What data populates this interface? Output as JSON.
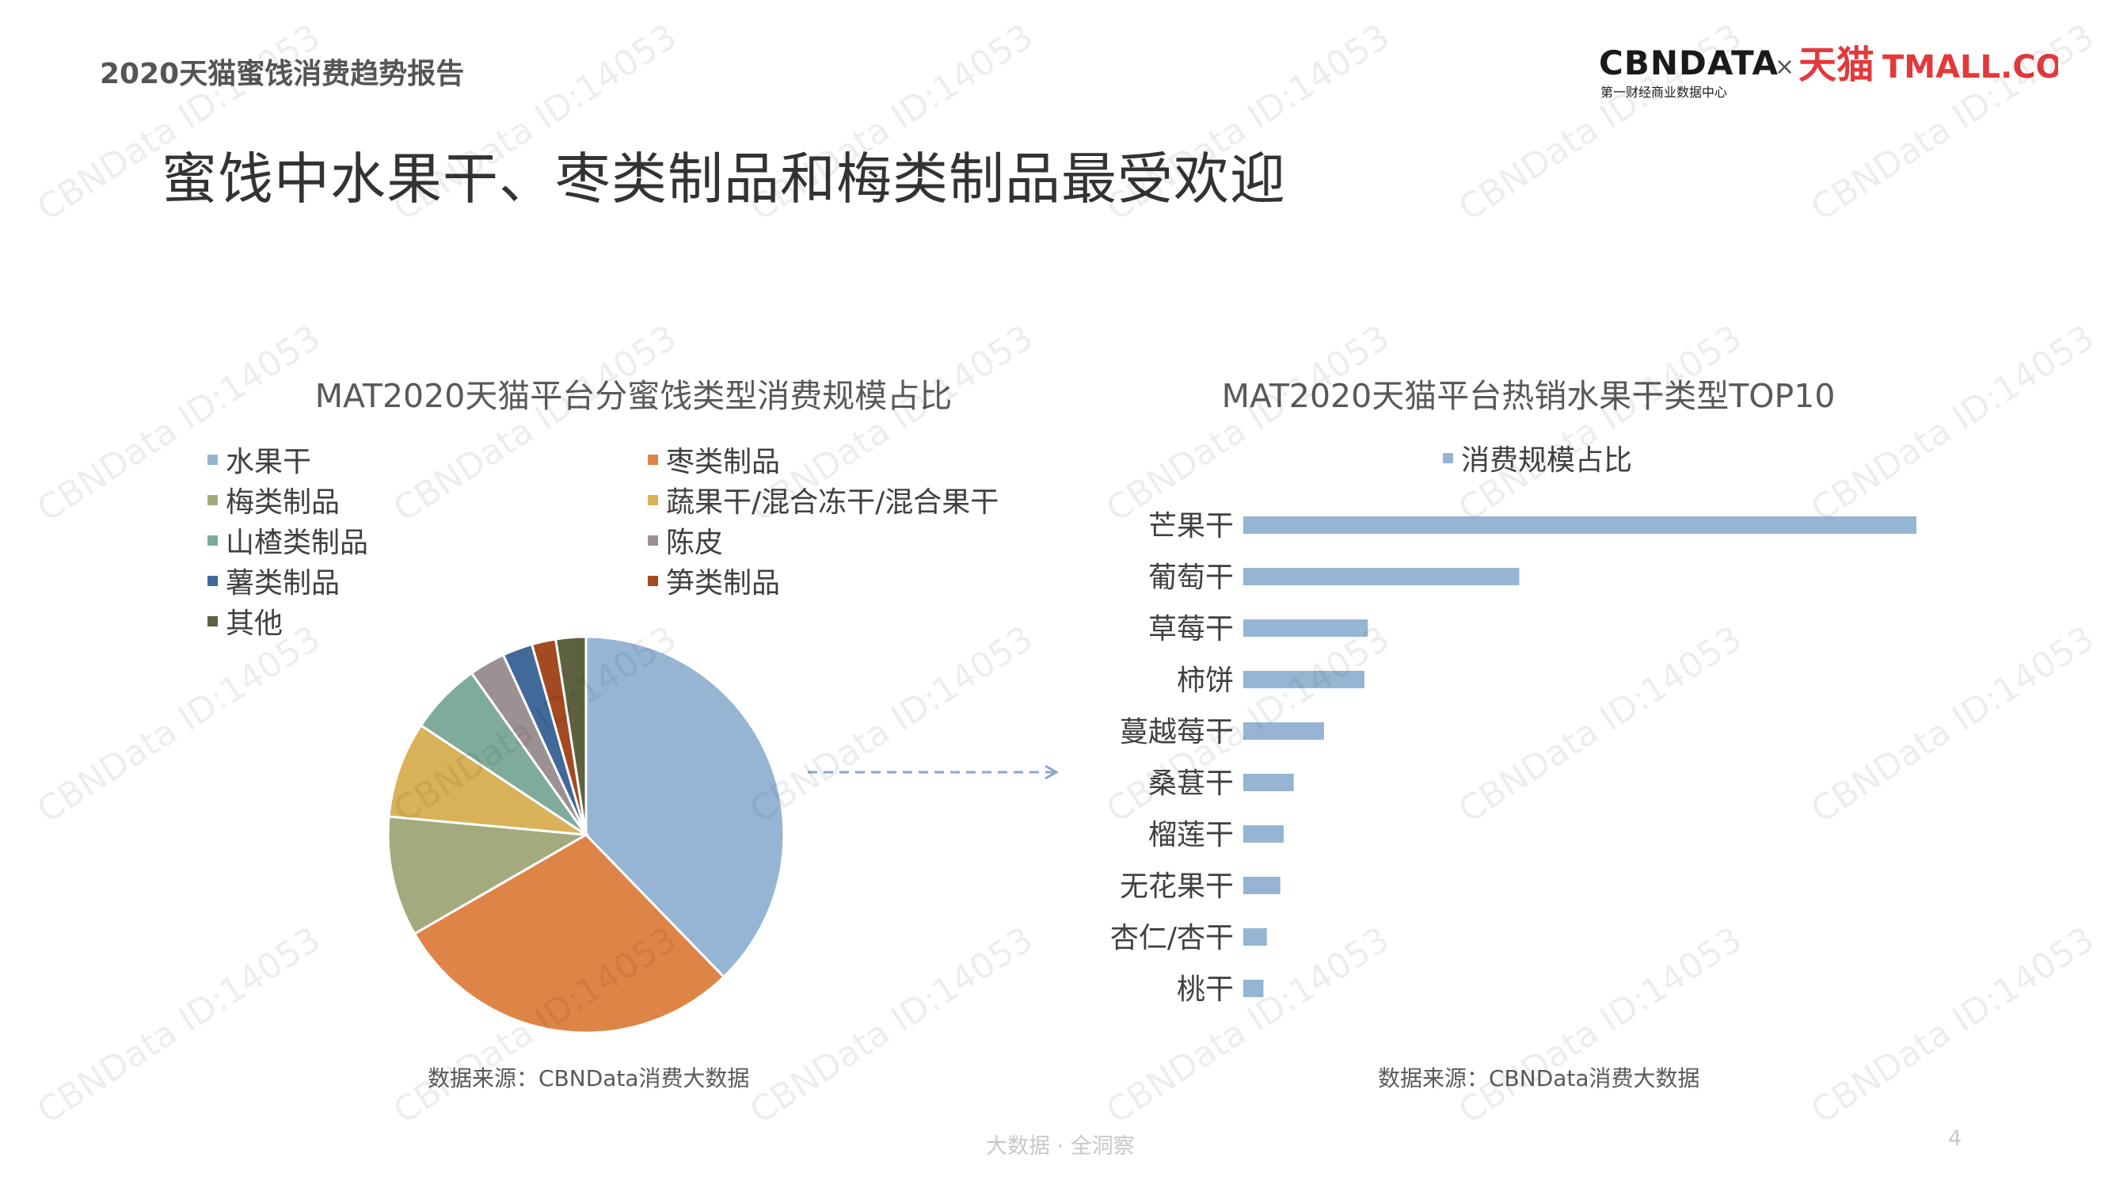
{
  "header": {
    "report_title": "2020天猫蜜饯消费趋势报告",
    "headline": "蜜饯中水果干、枣类制品和梅类制品最受欢迎"
  },
  "logo": {
    "cbndata": "CBNDATA",
    "cbndata_sub": "第一财经商业数据中心",
    "times": "×",
    "tmall_cn": "天猫",
    "tmall_en": "TMALL.COM",
    "cbndata_color": "#1a1a1a",
    "tmall_color": "#e4393c"
  },
  "watermark_text": "CBNData ID:14053",
  "footer": {
    "text": "大数据 · 全洞察",
    "page_number": "4"
  },
  "chart_data": [
    {
      "type": "pie",
      "title": "MAT2020天猫平台分蜜饯类型消费规模占比",
      "source": "数据来源：CBNData消费大数据",
      "labels": [
        "水果干",
        "枣类制品",
        "梅类制品",
        "蔬果干/混合冻干/混合果干",
        "山楂类制品",
        "陈皮",
        "薯类制品",
        "笋类制品",
        "其他"
      ],
      "values": [
        38.5,
        29.5,
        10.0,
        8.0,
        6.0,
        3.0,
        2.5,
        2.0,
        2.5
      ],
      "colors": [
        "#96b5d4",
        "#df8447",
        "#a3ab7e",
        "#d9b158",
        "#7eab9c",
        "#9b9092",
        "#41699a",
        "#a34a22",
        "#5e613f"
      ],
      "legend_position": "top"
    },
    {
      "type": "bar",
      "orientation": "horizontal",
      "title": "MAT2020天猫平台热销水果干类型TOP10",
      "source": "数据来源：CBNData消费大数据",
      "series": [
        {
          "name": "消费规模占比",
          "color": "#96b5d4",
          "categories": [
            "芒果干",
            "葡萄干",
            "草莓干",
            "柿饼",
            "蔓越莓干",
            "桑葚干",
            "榴莲干",
            "无花果干",
            "杏仁/杏干",
            "桃干"
          ],
          "values": [
            100,
            41,
            18.5,
            18,
            12,
            7.5,
            6,
            5.5,
            3.5,
            3
          ]
        }
      ],
      "axis": {
        "x_visible": false,
        "grid": false
      }
    }
  ]
}
